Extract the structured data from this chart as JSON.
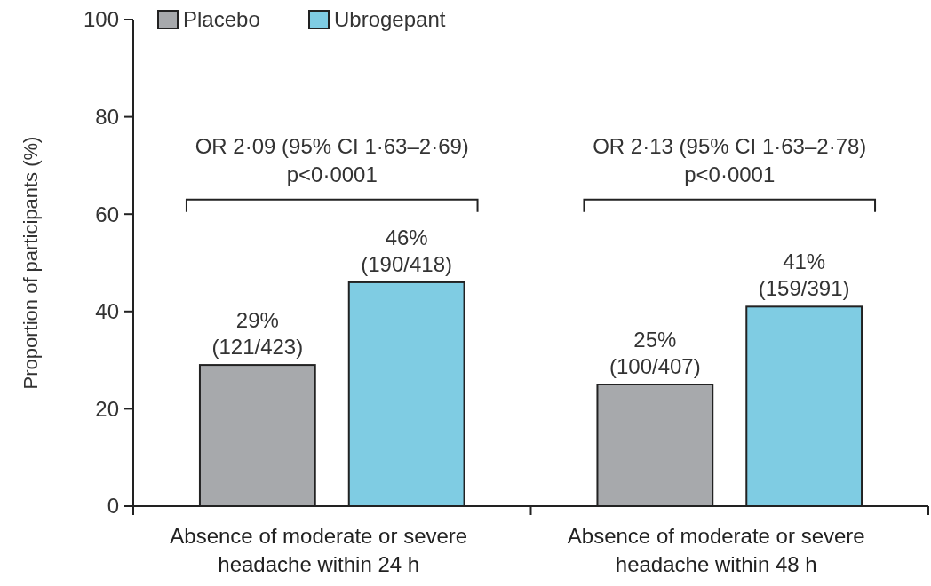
{
  "chart_data": {
    "type": "bar",
    "ylabel": "Proportion of participants (%)",
    "categories": [
      "Absence of moderate or severe\nheadache within 24 h",
      "Absence of moderate or severe\nheadache within 48 h"
    ],
    "series": [
      {
        "name": "Placebo",
        "color": "#a7a9ac",
        "values": [
          29,
          25
        ],
        "value_labels": [
          "29%\n(121/423)",
          "25%\n(100/407)"
        ]
      },
      {
        "name": "Ubrogepant",
        "color": "#7fcce3",
        "values": [
          46,
          41
        ],
        "value_labels": [
          "46%\n(190/418)",
          "41%\n(159/391)"
        ]
      }
    ],
    "ylim": [
      0,
      100
    ],
    "yticks": [
      0,
      20,
      40,
      60,
      80,
      100
    ],
    "grid": false,
    "legend": "top left",
    "annotations": [
      "OR 2·09 (95% CI 1·63–2·69)\np<0·0001",
      "OR 2·13 (95% CI 1·63–2·78)\np<0·0001"
    ]
  }
}
